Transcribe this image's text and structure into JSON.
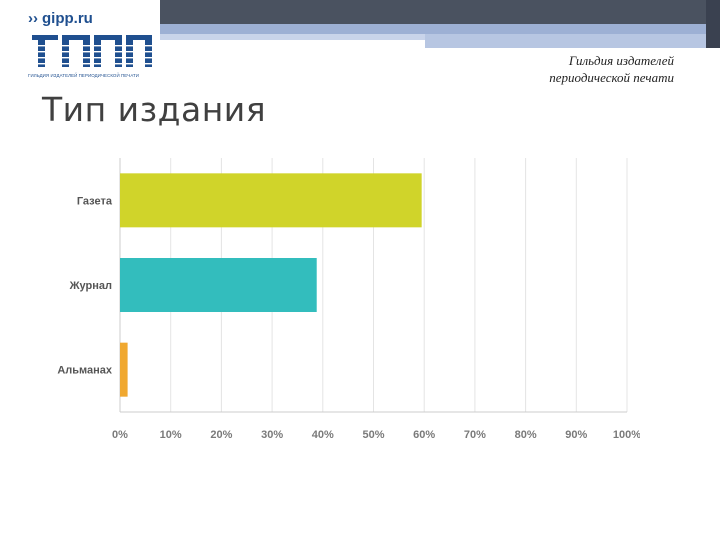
{
  "logo": {
    "url_text": "gipp.ru",
    "caption": "ГИЛЬДИЯ ИЗДАТЕЛЕЙ ПЕРИОДИЧЕСКОЙ ПЕЧАТИ",
    "brand_color": "#1f4f8f"
  },
  "header": {
    "guild_line1": "Гильдия издателей",
    "guild_line2": "периодической печати"
  },
  "slide": {
    "title": "Тип издания"
  },
  "chart_data": {
    "type": "bar",
    "orientation": "horizontal",
    "categories": [
      "Газета",
      "Журнал",
      "Альманах"
    ],
    "values": [
      59.5,
      38.8,
      1.5
    ],
    "colors": [
      "#d0d42a",
      "#33bdbd",
      "#f0a830"
    ],
    "xlim": [
      0,
      100
    ],
    "xticks": [
      "0%",
      "10%",
      "20%",
      "30%",
      "40%",
      "50%",
      "60%",
      "70%",
      "80%",
      "90%",
      "100%"
    ],
    "grid": true,
    "legend": "none"
  }
}
